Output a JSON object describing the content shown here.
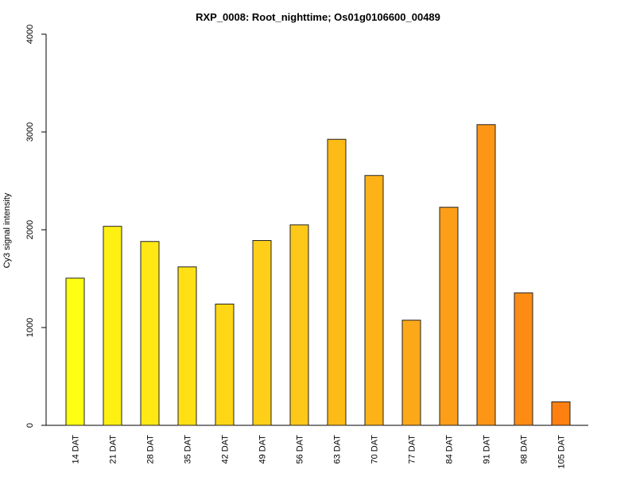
{
  "chart_data": {
    "type": "bar",
    "title": "RXP_0008: Root_nighttime; Os01g0106600_00489",
    "xlabel": "",
    "ylabel": "Cy3 signal intensity",
    "ylim": [
      0,
      4000
    ],
    "yticks": [
      0,
      1000,
      2000,
      3000,
      4000
    ],
    "grid": false,
    "categories": [
      "14 DAT",
      "21 DAT",
      "28 DAT",
      "35 DAT",
      "42 DAT",
      "49 DAT",
      "56 DAT",
      "63 DAT",
      "70 DAT",
      "77 DAT",
      "84 DAT",
      "91 DAT",
      "98 DAT",
      "105 DAT"
    ],
    "values": [
      1505,
      2035,
      1880,
      1620,
      1240,
      1890,
      2050,
      2925,
      2555,
      1075,
      2230,
      3075,
      1355,
      240
    ],
    "colors": [
      "#FFFF14",
      "#FFF014",
      "#FFE814",
      "#FFE014",
      "#FDD716",
      "#FDCF18",
      "#FDC818",
      "#FDBB16",
      "#FDB218",
      "#FDA818",
      "#FD9E18",
      "#FD9516",
      "#FD8C14",
      "#FD8010"
    ]
  }
}
